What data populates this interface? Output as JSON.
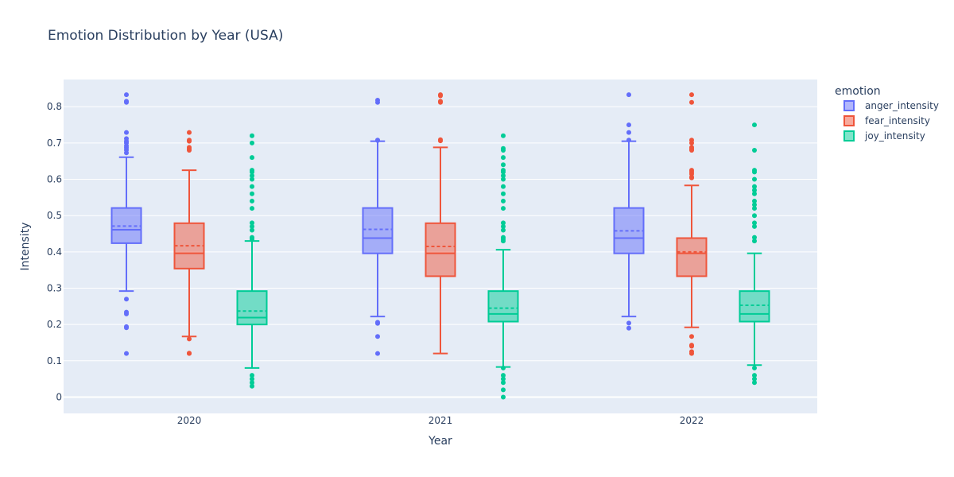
{
  "chart_data": {
    "type": "box",
    "title": "Emotion Distribution by Year (USA)",
    "xlabel": "Year",
    "ylabel": "Intensity",
    "categories": [
      "2020",
      "2021",
      "2022"
    ],
    "ylim": [
      -0.045,
      0.875
    ],
    "yticks": [
      0,
      0.1,
      0.2,
      0.3,
      0.4,
      0.5,
      0.6,
      0.7,
      0.8
    ],
    "ytick_labels": [
      "0",
      "0.1",
      "0.2",
      "0.3",
      "0.4",
      "0.5",
      "0.6",
      "0.7",
      "0.8"
    ],
    "grid": true,
    "legend_title": "emotion",
    "legend_position": "top-right",
    "series": [
      {
        "name": "anger_intensity",
        "color": "#636efa",
        "boxes": [
          {
            "q1": 0.424,
            "median": 0.461,
            "q3": 0.521,
            "mean": 0.471,
            "lower_fence": 0.292,
            "upper_fence": 0.661,
            "outliers": [
              0.833,
              0.815,
              0.812,
              0.729,
              0.712,
              0.705,
              0.7,
              0.692,
              0.687,
              0.681,
              0.673,
              0.27,
              0.234,
              0.229,
              0.194,
              0.191,
              0.12
            ]
          },
          {
            "q1": 0.396,
            "median": 0.438,
            "q3": 0.521,
            "mean": 0.462,
            "lower_fence": 0.222,
            "upper_fence": 0.705,
            "outliers": [
              0.818,
              0.812,
              0.708,
              0.707,
              0.206,
              0.203,
              0.167,
              0.12
            ]
          },
          {
            "q1": 0.396,
            "median": 0.438,
            "q3": 0.521,
            "mean": 0.458,
            "lower_fence": 0.222,
            "upper_fence": 0.705,
            "outliers": [
              0.833,
              0.75,
              0.729,
              0.708,
              0.204,
              0.19
            ]
          }
        ]
      },
      {
        "name": "fear_intensity",
        "color": "#ef553b",
        "boxes": [
          {
            "q1": 0.354,
            "median": 0.396,
            "q3": 0.479,
            "mean": 0.417,
            "lower_fence": 0.167,
            "upper_fence": 0.625,
            "outliers": [
              0.729,
              0.708,
              0.705,
              0.688,
              0.684,
              0.68,
              0.16,
              0.121,
              0.12
            ]
          },
          {
            "q1": 0.333,
            "median": 0.396,
            "q3": 0.479,
            "mean": 0.415,
            "lower_fence": 0.12,
            "upper_fence": 0.688,
            "outliers": [
              0.833,
              0.83,
              0.815,
              0.812,
              0.709,
              0.706
            ]
          },
          {
            "q1": 0.333,
            "median": 0.396,
            "q3": 0.438,
            "mean": 0.4,
            "lower_fence": 0.192,
            "upper_fence": 0.583,
            "outliers": [
              0.833,
              0.812,
              0.708,
              0.7,
              0.688,
              0.684,
              0.68,
              0.625,
              0.62,
              0.615,
              0.606,
              0.604,
              0.167,
              0.143,
              0.14,
              0.125,
              0.12
            ]
          }
        ]
      },
      {
        "name": "joy_intensity",
        "color": "#00cc96",
        "boxes": [
          {
            "q1": 0.2,
            "median": 0.219,
            "q3": 0.292,
            "mean": 0.237,
            "lower_fence": 0.08,
            "upper_fence": 0.43,
            "outliers": [
              0.72,
              0.7,
              0.66,
              0.625,
              0.62,
              0.61,
              0.6,
              0.58,
              0.56,
              0.54,
              0.52,
              0.48,
              0.47,
              0.46,
              0.44,
              0.435,
              0.06,
              0.05,
              0.04,
              0.03
            ]
          },
          {
            "q1": 0.208,
            "median": 0.229,
            "q3": 0.292,
            "mean": 0.245,
            "lower_fence": 0.083,
            "upper_fence": 0.406,
            "outliers": [
              0.72,
              0.685,
              0.68,
              0.66,
              0.64,
              0.625,
              0.62,
              0.61,
              0.6,
              0.58,
              0.56,
              0.54,
              0.52,
              0.48,
              0.47,
              0.46,
              0.44,
              0.435,
              0.43,
              0.08,
              0.06,
              0.05,
              0.04,
              0.02,
              0.0
            ]
          },
          {
            "q1": 0.208,
            "median": 0.229,
            "q3": 0.292,
            "mean": 0.253,
            "lower_fence": 0.088,
            "upper_fence": 0.396,
            "outliers": [
              0.75,
              0.68,
              0.625,
              0.62,
              0.6,
              0.58,
              0.57,
              0.56,
              0.54,
              0.53,
              0.52,
              0.5,
              0.48,
              0.47,
              0.44,
              0.43,
              0.08,
              0.06,
              0.05,
              0.04
            ]
          }
        ]
      }
    ]
  }
}
